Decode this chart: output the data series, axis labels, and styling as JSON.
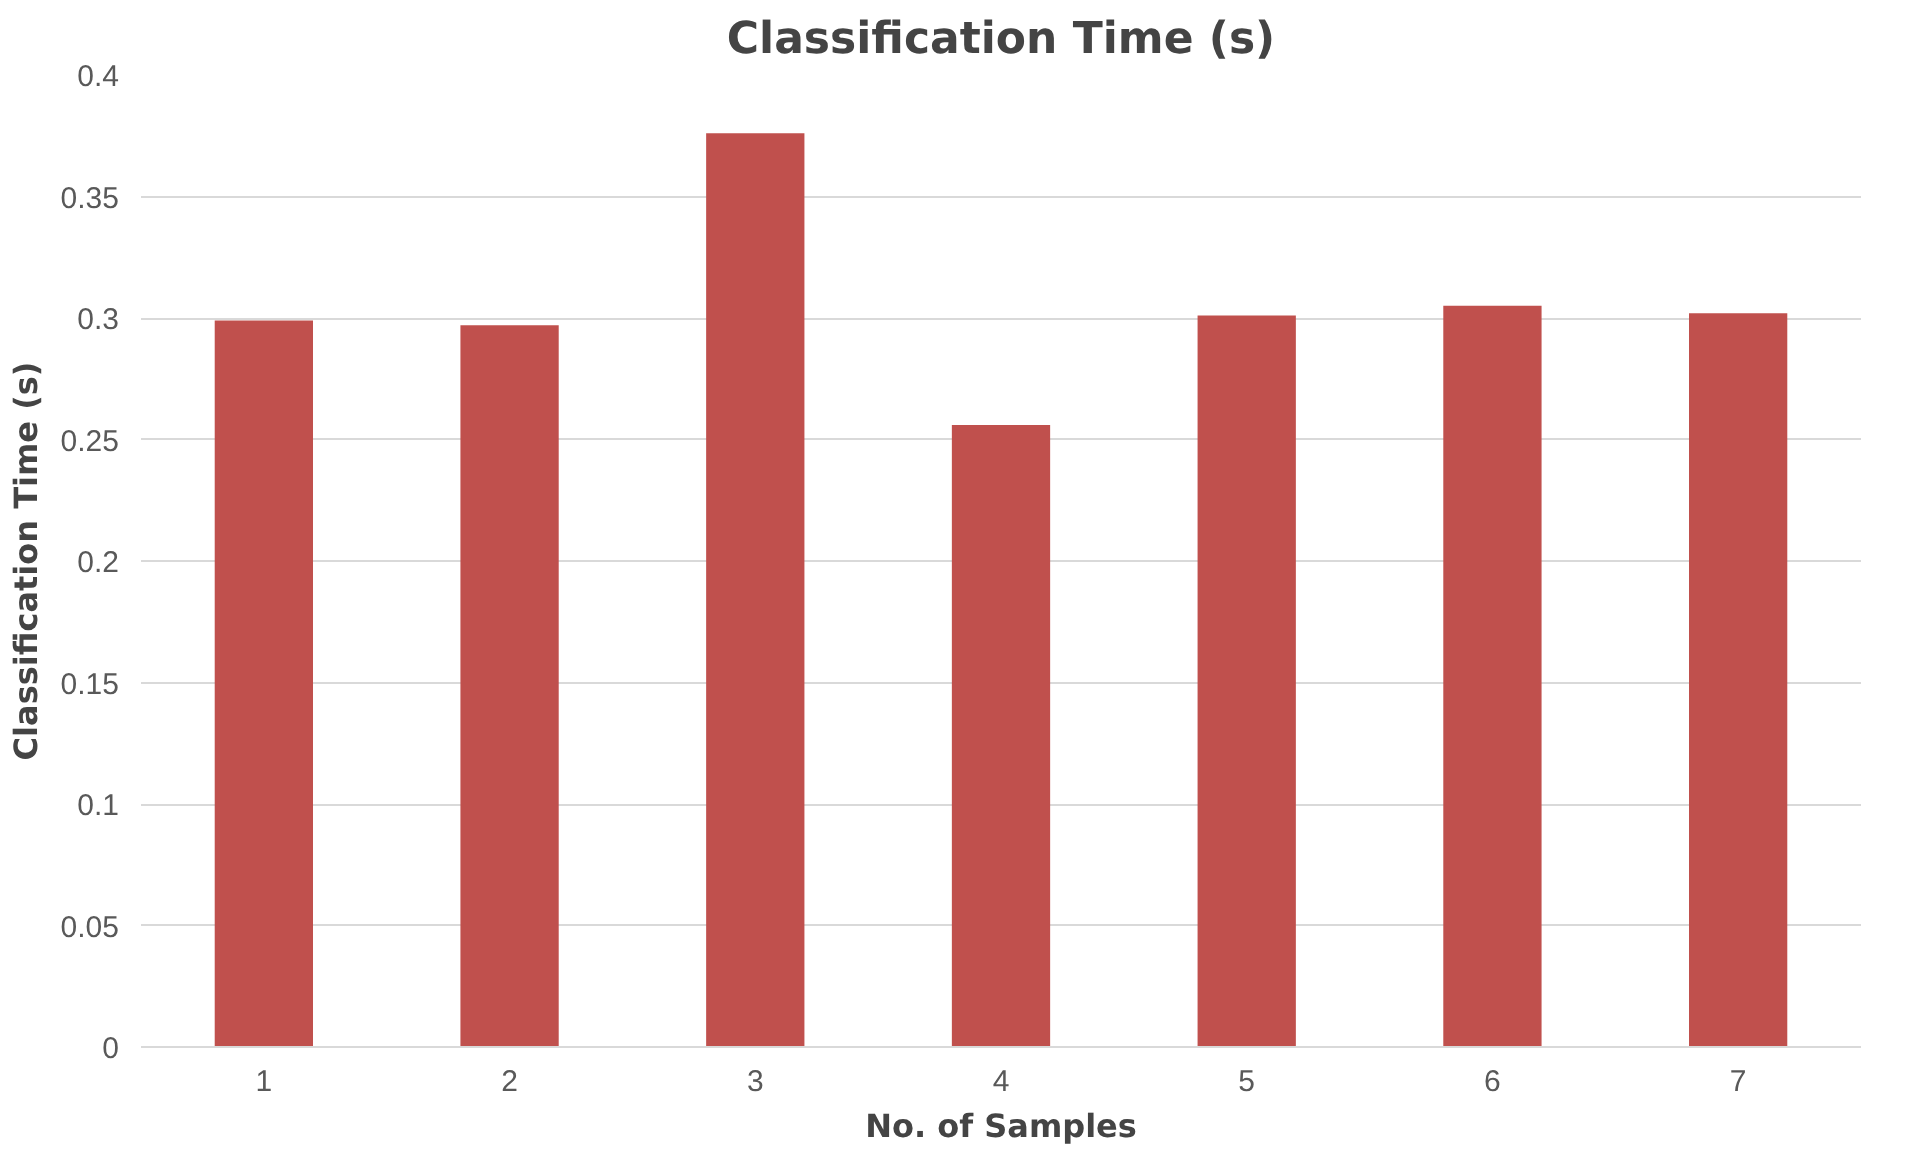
{
  "chart_data": {
    "type": "bar",
    "title": "Classification Time (s)",
    "xlabel": "No. of Samples",
    "ylabel": "Classification Time (s)",
    "categories": [
      "1",
      "2",
      "3",
      "4",
      "5",
      "6",
      "7"
    ],
    "values": [
      0.299,
      0.297,
      0.376,
      0.256,
      0.301,
      0.305,
      0.302
    ],
    "color": "#c0504d",
    "ylim": [
      0,
      0.4
    ],
    "yticks": [
      0,
      0.05,
      0.1,
      0.15,
      0.2,
      0.25,
      0.3,
      0.35,
      0.4
    ],
    "grid": "y"
  }
}
